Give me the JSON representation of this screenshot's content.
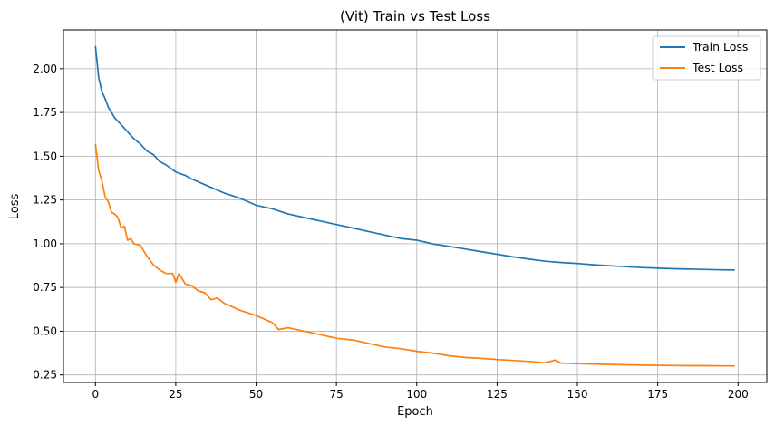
{
  "chart_data": {
    "type": "line",
    "title": "(Vit) Train vs Test Loss",
    "xlabel": "Epoch",
    "ylabel": "Loss",
    "xlim": [
      -9.95,
      208.95
    ],
    "ylim": [
      0.207,
      2.222
    ],
    "xticks": [
      0,
      25,
      50,
      75,
      100,
      125,
      150,
      175,
      200
    ],
    "yticks": [
      0.25,
      0.5,
      0.75,
      1.0,
      1.25,
      1.5,
      1.75,
      2.0
    ],
    "ytick_labels": [
      "0.25",
      "0.50",
      "0.75",
      "1.00",
      "1.25",
      "1.50",
      "1.75",
      "2.00"
    ],
    "xtick_labels": [
      "0",
      "25",
      "50",
      "75",
      "100",
      "125",
      "150",
      "175",
      "200"
    ],
    "grid": true,
    "legend_position": "top-right",
    "series": [
      {
        "name": "Train Loss",
        "color": "#1f77b4",
        "x": [
          0,
          1,
          2,
          3,
          4,
          5,
          6,
          7,
          8,
          9,
          10,
          12,
          14,
          16,
          18,
          20,
          22,
          25,
          28,
          30,
          35,
          40,
          45,
          50,
          55,
          60,
          65,
          70,
          75,
          80,
          85,
          90,
          95,
          100,
          105,
          110,
          115,
          120,
          125,
          130,
          135,
          140,
          145,
          150,
          155,
          160,
          165,
          170,
          175,
          180,
          185,
          190,
          195,
          199
        ],
        "y": [
          2.13,
          1.95,
          1.87,
          1.83,
          1.78,
          1.75,
          1.72,
          1.7,
          1.68,
          1.66,
          1.64,
          1.6,
          1.57,
          1.53,
          1.51,
          1.47,
          1.45,
          1.41,
          1.39,
          1.37,
          1.33,
          1.29,
          1.26,
          1.22,
          1.2,
          1.17,
          1.15,
          1.13,
          1.11,
          1.09,
          1.07,
          1.05,
          1.03,
          1.02,
          0.999,
          0.985,
          0.97,
          0.955,
          0.94,
          0.925,
          0.912,
          0.9,
          0.893,
          0.887,
          0.88,
          0.874,
          0.869,
          0.864,
          0.86,
          0.857,
          0.855,
          0.853,
          0.851,
          0.85
        ]
      },
      {
        "name": "Test Loss",
        "color": "#ff7f0e",
        "x": [
          0,
          1,
          2,
          3,
          4,
          5,
          6,
          7,
          8,
          9,
          10,
          11,
          12,
          14,
          16,
          18,
          20,
          22,
          24,
          25,
          26,
          28,
          30,
          32,
          34,
          36,
          38,
          40,
          45,
          50,
          55,
          57,
          60,
          65,
          70,
          75,
          80,
          85,
          90,
          95,
          100,
          105,
          110,
          115,
          120,
          125,
          130,
          135,
          140,
          143,
          145,
          150,
          155,
          160,
          165,
          170,
          175,
          180,
          185,
          190,
          195,
          199
        ],
        "y": [
          1.57,
          1.42,
          1.36,
          1.27,
          1.24,
          1.18,
          1.17,
          1.15,
          1.09,
          1.1,
          1.02,
          1.03,
          1.0,
          0.99,
          0.93,
          0.88,
          0.85,
          0.83,
          0.83,
          0.78,
          0.83,
          0.77,
          0.76,
          0.73,
          0.72,
          0.68,
          0.69,
          0.66,
          0.62,
          0.59,
          0.55,
          0.51,
          0.52,
          0.5,
          0.48,
          0.46,
          0.45,
          0.43,
          0.41,
          0.4,
          0.385,
          0.375,
          0.36,
          0.35,
          0.345,
          0.338,
          0.333,
          0.327,
          0.32,
          0.335,
          0.318,
          0.315,
          0.312,
          0.31,
          0.308,
          0.306,
          0.305,
          0.304,
          0.303,
          0.303,
          0.302,
          0.302
        ]
      }
    ]
  }
}
